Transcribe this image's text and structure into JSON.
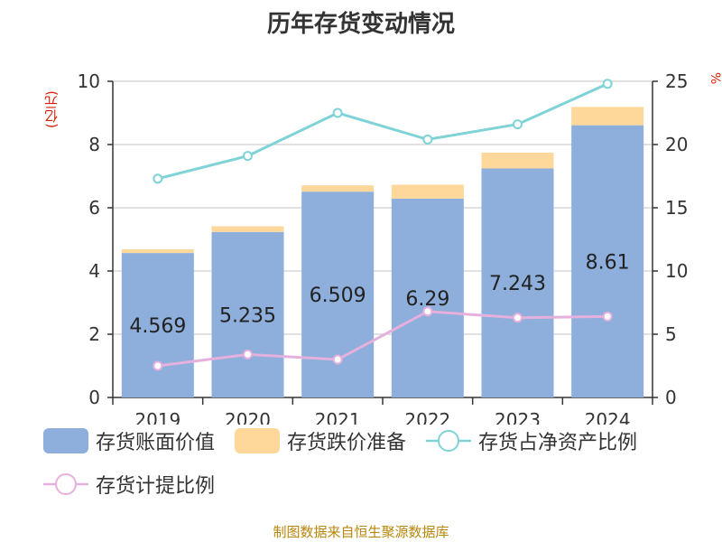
{
  "title": "历年存货变动情况",
  "source": "制图数据来自恒生聚源数据库",
  "left_unit": "(亿元)",
  "right_unit": "%",
  "colors": {
    "book_value": "#8eaedb",
    "impairment": "#fdd89a",
    "ratio_net_assets": "#7fd3d6",
    "provision_ratio": "#e5b0dc",
    "title": "#333333",
    "unit": "#d81e06",
    "source": "#b8860b"
  },
  "legend": [
    {
      "label": "存货账面价值",
      "kind": "bar",
      "series": "book_value"
    },
    {
      "label": "存货跌价准备",
      "kind": "bar",
      "series": "impairment"
    },
    {
      "label": "存货占净资产比例",
      "kind": "line",
      "series": "ratio_net_assets"
    },
    {
      "label": "存货计提比例",
      "kind": "line",
      "series": "provision_ratio"
    }
  ],
  "chart_data": {
    "type": "bar",
    "categories": [
      "2019",
      "2020",
      "2021",
      "2022",
      "2023",
      "2024"
    ],
    "ylim": [
      0,
      10
    ],
    "yticks": [
      "0",
      "2",
      "4",
      "6",
      "8",
      "10"
    ],
    "y2lim": [
      0,
      25
    ],
    "y2ticks": [
      "0",
      "5",
      "10",
      "15",
      "20",
      "25"
    ],
    "grid": true,
    "legend_position": "bottom",
    "series": [
      {
        "name": "存货账面价值",
        "key": "book_value",
        "type": "bar",
        "axis": "left",
        "stack": true,
        "values": [
          4.569,
          5.235,
          6.509,
          6.29,
          7.243,
          8.61
        ],
        "labels": [
          "4.569",
          "5.235",
          "6.509",
          "6.29",
          "7.243",
          "8.61"
        ]
      },
      {
        "name": "存货跌价准备",
        "key": "impairment",
        "type": "bar",
        "axis": "left",
        "stack": true,
        "values": [
          0.12,
          0.18,
          0.2,
          0.44,
          0.5,
          0.58
        ]
      },
      {
        "name": "存货占净资产比例",
        "key": "ratio_net_assets",
        "type": "line",
        "axis": "right",
        "values": [
          17.3,
          19.1,
          22.5,
          20.4,
          21.6,
          24.8
        ]
      },
      {
        "name": "存货计提比例",
        "key": "provision_ratio",
        "type": "line",
        "axis": "right",
        "values": [
          2.5,
          3.4,
          3.0,
          6.8,
          6.3,
          6.4
        ]
      }
    ]
  }
}
